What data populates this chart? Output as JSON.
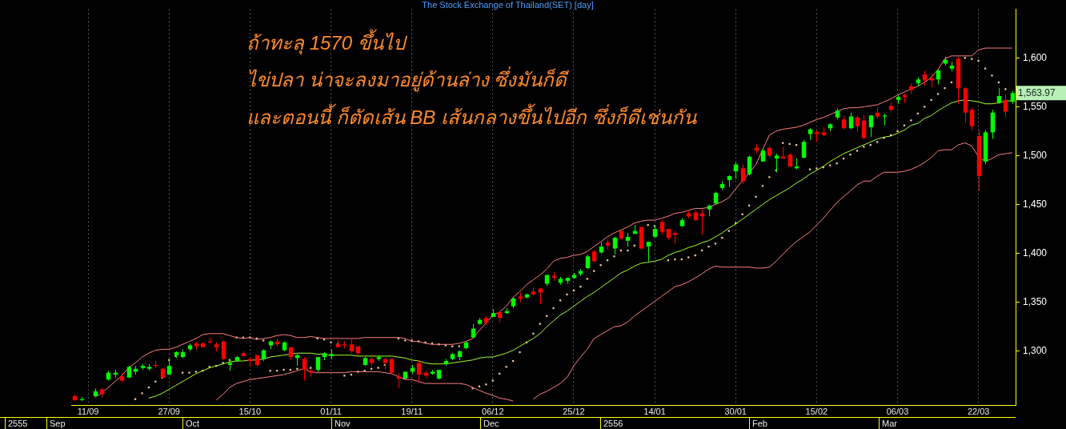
{
  "chart_data": {
    "type": "candlestick",
    "title": "The Stock Exchange of Thailand(SET) [day]",
    "categories": [
      null,
      null,
      "11/09",
      null,
      null,
      null,
      null,
      null,
      null,
      null,
      null,
      null,
      null,
      null,
      "27/09",
      null,
      null,
      null,
      null,
      null,
      null,
      null,
      null,
      null,
      null,
      null,
      "15/10",
      null,
      null,
      null,
      null,
      null,
      null,
      null,
      null,
      null,
      null,
      null,
      "01/11",
      null,
      null,
      null,
      null,
      null,
      null,
      null,
      null,
      null,
      null,
      null,
      "19/11",
      null,
      null,
      null,
      null,
      null,
      null,
      null,
      null,
      null,
      null,
      null,
      "06/12",
      null,
      null,
      null,
      null,
      null,
      null,
      null,
      null,
      null,
      null,
      null,
      "25/12",
      null,
      null,
      null,
      null,
      null,
      null,
      null,
      null,
      null,
      null,
      null,
      "14/01",
      null,
      null,
      null,
      null,
      null,
      null,
      null,
      null,
      null,
      null,
      null,
      "30/01",
      null,
      null,
      null,
      null,
      null,
      null,
      null,
      null,
      null,
      null,
      null,
      "15/02",
      null,
      null,
      null,
      null,
      null,
      null,
      null,
      null,
      null,
      null,
      null,
      "06/03",
      null,
      null,
      null,
      null,
      null,
      null,
      null,
      null,
      null,
      null,
      null,
      "22/03",
      null,
      null,
      null,
      null,
      null
    ],
    "ohlc": [
      [
        1254,
        1256,
        1249,
        1250
      ],
      [
        1250,
        1253,
        1249,
        1251
      ],
      null,
      [
        1254,
        1262,
        1253,
        1259
      ],
      [
        1261,
        1262,
        1253,
        1256
      ],
      [
        1271,
        1280,
        1270,
        1278
      ],
      [
        1276,
        1281,
        1273,
        1278
      ],
      [
        1274,
        1278,
        1268,
        1270
      ],
      [
        1273,
        1285,
        1273,
        1284
      ],
      [
        1279,
        1285,
        1276,
        1282
      ],
      [
        1283,
        1287,
        1281,
        1285
      ],
      [
        1282,
        1287,
        1280,
        1284
      ],
      [
        1286,
        1290,
        1283,
        1285
      ],
      [
        1282,
        1283,
        1272,
        1273
      ],
      [
        1276,
        1292,
        1276,
        1285
      ],
      [
        1296,
        1300,
        1293,
        1299
      ],
      [
        1294,
        1302,
        1293,
        1299
      ],
      [
        1302,
        1308,
        1300,
        1306
      ],
      [
        1308,
        1310,
        1302,
        1305
      ],
      [
        1308,
        1309,
        1304,
        1304
      ],
      [
        1310,
        1314,
        1308,
        1309
      ],
      [
        1307,
        1309,
        1300,
        1304
      ],
      [
        1310,
        1311,
        1291,
        1292
      ],
      [
        1286,
        1292,
        1280,
        1288
      ],
      [
        1290,
        1295,
        1289,
        1294
      ],
      [
        1298,
        1300,
        1295,
        1295
      ],
      [
        1292,
        1294,
        1285,
        1290
      ],
      [
        1296,
        1296,
        1284,
        1286
      ],
      [
        1292,
        1302,
        1290,
        1301
      ],
      [
        1306,
        1311,
        1302,
        1310
      ],
      [
        1310,
        1313,
        1305,
        1307
      ],
      [
        1301,
        1310,
        1300,
        1309
      ],
      [
        1304,
        1304,
        1291,
        1294
      ],
      [
        1293,
        1297,
        1285,
        1296
      ],
      [
        1292,
        1294,
        1270,
        1281
      ],
      [
        1280,
        1282,
        1274,
        1278
      ],
      [
        1281,
        1294,
        1279,
        1294
      ],
      [
        1294,
        1299,
        1291,
        1298
      ],
      [
        1295,
        1302,
        1292,
        1297
      ],
      [
        1307,
        1311,
        1304,
        1304
      ],
      [
        1307,
        1310,
        1303,
        1306
      ],
      [
        1307,
        1313,
        1298,
        1300
      ],
      [
        1305,
        1305,
        1296,
        1298
      ],
      [
        1286,
        1294,
        1285,
        1293
      ],
      [
        1292,
        1297,
        1285,
        1288
      ],
      [
        1292,
        1296,
        1290,
        1294
      ],
      [
        1292,
        1293,
        1281,
        1288
      ],
      [
        1292,
        1293,
        1277,
        1278
      ],
      [
        1274,
        1278,
        1262,
        1272
      ],
      [
        1272,
        1279,
        1271,
        1279
      ],
      [
        1279,
        1286,
        1277,
        1283
      ],
      [
        1288,
        1291,
        1268,
        1276
      ],
      [
        1278,
        1280,
        1273,
        1275
      ],
      [
        1277,
        1281,
        1276,
        1279
      ],
      [
        1272,
        1281,
        1271,
        1281
      ],
      [
        1287,
        1292,
        1285,
        1290
      ],
      [
        1292,
        1298,
        1291,
        1297
      ],
      [
        1294,
        1301,
        1291,
        1300
      ],
      [
        1303,
        1310,
        1302,
        1309
      ],
      [
        1314,
        1328,
        1313,
        1323
      ],
      [
        1328,
        1334,
        1327,
        1332
      ],
      [
        1334,
        1336,
        1327,
        1329
      ],
      [
        1335,
        1343,
        1335,
        1339
      ],
      [
        1340,
        1341,
        1329,
        1334
      ],
      [
        1339,
        1344,
        1338,
        1341
      ],
      [
        1346,
        1355,
        1344,
        1354
      ],
      [
        1356,
        1360,
        1350,
        1354
      ],
      [
        1355,
        1359,
        1354,
        1358
      ],
      [
        1361,
        1365,
        1357,
        1358
      ],
      [
        1364,
        1365,
        1348,
        1360
      ],
      [
        1369,
        1378,
        1367,
        1378
      ],
      [
        1377,
        1381,
        1372,
        1375
      ],
      [
        1370,
        1376,
        1368,
        1374
      ],
      [
        1372,
        1375,
        1369,
        1375
      ],
      [
        1375,
        1380,
        1374,
        1378
      ],
      [
        1379,
        1384,
        1377,
        1382
      ],
      [
        1385,
        1399,
        1384,
        1397
      ],
      [
        1402,
        1403,
        1391,
        1392
      ],
      [
        1401,
        1411,
        1400,
        1407
      ],
      [
        1411,
        1414,
        1404,
        1408
      ],
      [
        1405,
        1417,
        1399,
        1416
      ],
      [
        1423,
        1425,
        1415,
        1415
      ],
      [
        1413,
        1421,
        1407,
        1417
      ],
      [
        1420,
        1429,
        1420,
        1423
      ],
      [
        1427,
        1427,
        1404,
        1405
      ],
      [
        1407,
        1412,
        1392,
        1412
      ],
      [
        1417,
        1429,
        1416,
        1425
      ],
      [
        1432,
        1434,
        1419,
        1422
      ],
      [
        1425,
        1425,
        1414,
        1416
      ],
      [
        1421,
        1423,
        1410,
        1419
      ],
      [
        1428,
        1436,
        1427,
        1434
      ],
      [
        1441,
        1443,
        1436,
        1438
      ],
      [
        1442,
        1444,
        1433,
        1434
      ],
      [
        1441,
        1445,
        1419,
        1438
      ],
      [
        1445,
        1450,
        1438,
        1449
      ],
      [
        1451,
        1463,
        1450,
        1462
      ],
      [
        1467,
        1474,
        1465,
        1471
      ],
      [
        1475,
        1480,
        1468,
        1479
      ],
      [
        1484,
        1493,
        1476,
        1491
      ],
      [
        1487,
        1491,
        1471,
        1474
      ],
      [
        1481,
        1500,
        1480,
        1499
      ],
      [
        1508,
        1512,
        1502,
        1505
      ],
      [
        1494,
        1508,
        1494,
        1505
      ],
      [
        1508,
        1510,
        1498,
        1500
      ],
      [
        1497,
        1502,
        1483,
        1500
      ],
      [
        1499,
        1509,
        1497,
        1497
      ],
      [
        1501,
        1502,
        1488,
        1489
      ],
      [
        1487,
        1497,
        1486,
        1489
      ],
      [
        1498,
        1516,
        1497,
        1514
      ],
      [
        1522,
        1528,
        1516,
        1527
      ],
      [
        1524,
        1526,
        1514,
        1522
      ],
      [
        1524,
        1529,
        1520,
        1521
      ],
      [
        1528,
        1533,
        1525,
        1532
      ],
      [
        1539,
        1548,
        1537,
        1546
      ],
      [
        1537,
        1541,
        1527,
        1528
      ],
      [
        1528,
        1544,
        1527,
        1540
      ],
      [
        1539,
        1541,
        1524,
        1530
      ],
      [
        1536,
        1541,
        1517,
        1518
      ],
      [
        1529,
        1541,
        1519,
        1541
      ],
      [
        1544,
        1550,
        1538,
        1540
      ],
      [
        1540,
        1543,
        1531,
        1541
      ],
      [
        1551,
        1555,
        1545,
        1547
      ],
      [
        1557,
        1562,
        1553,
        1560
      ],
      [
        1562,
        1563,
        1554,
        1560
      ],
      [
        1571,
        1574,
        1563,
        1567
      ],
      [
        1574,
        1580,
        1571,
        1578
      ],
      [
        1583,
        1587,
        1571,
        1577
      ],
      [
        1579,
        1584,
        1570,
        1577
      ],
      [
        1578,
        1588,
        1573,
        1587
      ],
      [
        1594,
        1601,
        1592,
        1598
      ],
      [
        1589,
        1596,
        1586,
        1592
      ],
      [
        1599,
        1601,
        1553,
        1569
      ],
      [
        1569,
        1570,
        1534,
        1544
      ],
      [
        1547,
        1549,
        1526,
        1530
      ],
      [
        1520,
        1526,
        1464,
        1479
      ],
      [
        1494,
        1526,
        1491,
        1524
      ],
      [
        1524,
        1547,
        1517,
        1544
      ],
      [
        1554,
        1569,
        1553,
        1561
      ],
      [
        1557,
        1563,
        1539,
        1545
      ],
      [
        1555,
        1566,
        1553,
        1563.97
      ]
    ],
    "series": [
      {
        "type": "line",
        "color": "#ff8080",
        "values": [
          null,
          null,
          null,
          1253,
          1257,
          1263,
          1269,
          1275,
          1283,
          1288,
          1294,
          1298,
          1301,
          1302,
          1302,
          1304,
          1307,
          1310,
          1313,
          1317,
          1318,
          1318,
          1318,
          1316,
          1314,
          1313,
          1314,
          1312,
          1313,
          1314,
          1316,
          1317,
          1316,
          1314,
          1314,
          1315,
          1314,
          1313,
          1313,
          1313,
          1313,
          1313,
          1313,
          1314,
          1314,
          1314,
          1314,
          1314,
          1314,
          1313,
          1310,
          1310,
          1308,
          1307,
          1307,
          1307,
          1307,
          1308,
          1310,
          1313,
          1321,
          1329,
          1337,
          1340,
          1346,
          1355,
          1361,
          1368,
          1373,
          1378,
          1384,
          1392,
          1395,
          1396,
          1398,
          1399,
          1402,
          1407,
          1412,
          1417,
          1421,
          1424,
          1427,
          1431,
          1433,
          1434,
          1434,
          1436,
          1438,
          1441,
          1442,
          1444,
          1446,
          1446,
          1447,
          1450,
          1453,
          1457,
          1466,
          1474,
          1482,
          1491,
          1506,
          1521,
          1525,
          1527,
          1528,
          1529,
          1531,
          1534,
          1537,
          1539,
          1542,
          1545,
          1548,
          1549,
          1549,
          1550,
          1551,
          1552,
          1555,
          1558,
          1562,
          1565,
          1568,
          1571,
          1575,
          1580,
          1588,
          1599,
          1602,
          1602,
          1602,
          1602,
          1608,
          1610,
          1610,
          1610,
          1610,
          1610
        ]
      },
      {
        "type": "line",
        "color": "#a6ff2a",
        "values": [
          null,
          null,
          null,
          null,
          null,
          null,
          null,
          null,
          null,
          null,
          null,
          1252,
          1254,
          1257,
          1261,
          1265,
          1269,
          1273,
          1277,
          1280,
          1283,
          1285,
          1287,
          1289,
          1290,
          1290,
          1291,
          1291,
          1292,
          1294,
          1295,
          1296,
          1297,
          1298,
          1298,
          1298,
          1297,
          1297,
          1296,
          1296,
          1296,
          1296,
          1295,
          1295,
          1295,
          1295,
          1295,
          1295,
          1294,
          1293,
          1291,
          1290,
          1288,
          1287,
          1287,
          1287,
          1288,
          1289,
          1290,
          1291,
          1293,
          1294,
          1294,
          1296,
          1298,
          1301,
          1305,
          1309,
          1313,
          1318,
          1325,
          1331,
          1337,
          1341,
          1346,
          1351,
          1356,
          1360,
          1365,
          1370,
          1375,
          1380,
          1383,
          1387,
          1390,
          1391,
          1392,
          1394,
          1398,
          1401,
          1403,
          1406,
          1408,
          1411,
          1413,
          1417,
          1421,
          1426,
          1430,
          1435,
          1440,
          1445,
          1450,
          1455,
          1459,
          1463,
          1467,
          1472,
          1476,
          1481,
          1485,
          1489,
          1494,
          1498,
          1502,
          1505,
          1508,
          1511,
          1514,
          1517,
          1519,
          1520,
          1523,
          1526,
          1531,
          1533,
          1538,
          1541,
          1546,
          1550,
          1554,
          1556,
          1557,
          1556,
          1555,
          1553,
          1553,
          1554,
          1556,
          1556
        ]
      },
      {
        "type": "line",
        "color": "#ff8080",
        "values": [
          null,
          null,
          null,
          null,
          null,
          null,
          null,
          null,
          null,
          null,
          null,
          null,
          null,
          null,
          null,
          null,
          null,
          null,
          null,
          null,
          null,
          1250,
          1256,
          1263,
          1267,
          1269,
          1271,
          1272,
          1273,
          1274,
          1275,
          1276,
          1278,
          1280,
          1282,
          1279,
          1278,
          1278,
          1278,
          1278,
          1278,
          1279,
          1279,
          1279,
          1279,
          1279,
          1278,
          1277,
          1274,
          1271,
          1271,
          1269,
          1267,
          1267,
          1267,
          1267,
          1267,
          1267,
          1266,
          1263,
          1260,
          1257,
          1255,
          1252,
          1251,
          1249,
          null,
          null,
          1251,
          1256,
          1259,
          1263,
          1267,
          1273,
          1285,
          1294,
          1302,
          1313,
          1317,
          1321,
          1325,
          1326,
          1330,
          1336,
          1341,
          1346,
          1351,
          1356,
          1361,
          1366,
          1368,
          1371,
          1375,
          1379,
          1384,
          1387,
          1386,
          1386,
          1386,
          1386,
          1386,
          1385,
          1385,
          1386,
          1392,
          1399,
          1406,
          1412,
          1417,
          1422,
          1429,
          1436,
          1444,
          1452,
          1458,
          1464,
          1470,
          1474,
          1474,
          1479,
          1483,
          1483,
          1483,
          1484,
          1486,
          1489,
          1493,
          1498,
          1505,
          1506,
          1506,
          1511,
          1513,
          1510,
          1499,
          1494,
          1497,
          1501,
          1502,
          1503
        ]
      },
      {
        "type": "scatter",
        "marker": "square",
        "color": "#f2c8a0",
        "values": [
          null,
          null,
          null,
          null,
          null,
          null,
          null,
          null,
          null,
          1251,
          1257,
          1263,
          1269,
          1273,
          1291,
          1295,
          1278,
          1278,
          1279,
          1280,
          1284,
          1285,
          1288,
          1291,
          1314,
          1314,
          1314,
          1313,
          1311,
          1280,
          1280,
          1281,
          1281,
          1282,
          null,
          1283,
          1313,
          1312,
          1309,
          1307,
          1275,
          1276,
          1279,
          1280,
          1282,
          1283,
          1286,
          null,
          1313,
          1311,
          1311,
          1310,
          1309,
          1308,
          1307,
          1306,
          1305,
          1305,
          null,
          1262,
          1264,
          1266,
          1270,
          1277,
          1284,
          1290,
          1299,
          1309,
          1318,
          1328,
          1336,
          1344,
          1352,
          1358,
          1362,
          1366,
          1374,
          1382,
          1388,
          1393,
          1397,
          1403,
          1403,
          1408,
          null,
          1429,
          1428,
          null,
          1393,
          1394,
          1394,
          1396,
          1398,
          1403,
          1407,
          1410,
          1416,
          1423,
          1431,
          1440,
          1449,
          1458,
          1469,
          1478,
          1485,
          1513,
          1512,
          1511,
          null,
          1486,
          1487,
          1488,
          1490,
          1492,
          1497,
          1501,
          1505,
          1509,
          1511,
          1514,
          1518,
          1521,
          1525,
          1531,
          1536,
          1543,
          1550,
          1557,
          1563,
          1569,
          1575,
          null,
          1600,
          1599,
          1597,
          1589,
          1582,
          1575,
          1568,
          null
        ]
      }
    ],
    "ylim": [
      1245,
      1650
    ],
    "yticks": [
      {
        "value": 1300,
        "label": "1,300"
      },
      {
        "value": 1350,
        "label": "1,350"
      },
      {
        "value": 1400,
        "label": "1,400"
      },
      {
        "value": 1450,
        "label": "1,450"
      },
      {
        "value": 1500,
        "label": "1,500"
      },
      {
        "value": 1550,
        "label": "1,550"
      },
      {
        "value": 1600,
        "label": "1,600"
      }
    ],
    "grid": "x",
    "legend": false,
    "annotations": [
      "ถ้าทะลุ 1570 ขึ้นไป",
      "ไข่ปลา น่าจะลงมาอยู่ด้านล่าง ซึ่งมันก็ดี",
      "และตอนนี้ ก็ตัดเส้น BB เส้นกลางขึ้นไปอีก ซึ่งก็ดีเช่นกัน",
      "1,563.97",
      "2555",
      "Sep",
      "Oct",
      "Nov",
      "Dec",
      "2556",
      "Feb",
      "Mar"
    ]
  }
}
